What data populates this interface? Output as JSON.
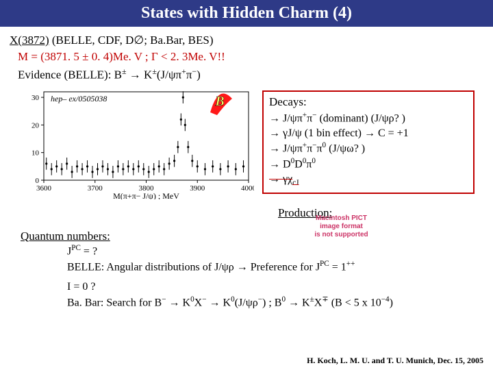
{
  "title": "States with Hidden Charm (4)",
  "line1_pre": "X(3872)",
  "line1_rest": " (BELLE, CDF, D∅; Ba.Bar, BES)",
  "line2": "M = (3871. 5 ± 0. 4)Me. V ; Γ < 2. 3Me. V!!",
  "line3": "Evidence (BELLE): B± → K±(J/ψπ+π−)",
  "chart": {
    "title_left": "hep– ex/0505038",
    "y_ticks": [
      0,
      10,
      20,
      30
    ],
    "x_ticks": [
      3600,
      3700,
      3800,
      3900,
      4000
    ],
    "x_label": "M(π+π− J/ψ) ; MeV",
    "ylim": [
      0,
      32
    ],
    "xlim": [
      3600,
      4000
    ],
    "points": [
      [
        3605,
        6
      ],
      [
        3615,
        4
      ],
      [
        3625,
        5
      ],
      [
        3635,
        4
      ],
      [
        3645,
        6
      ],
      [
        3655,
        3
      ],
      [
        3665,
        5
      ],
      [
        3675,
        4
      ],
      [
        3685,
        5
      ],
      [
        3695,
        3
      ],
      [
        3705,
        4
      ],
      [
        3715,
        5
      ],
      [
        3725,
        4
      ],
      [
        3735,
        3
      ],
      [
        3745,
        5
      ],
      [
        3755,
        4
      ],
      [
        3765,
        5
      ],
      [
        3775,
        4
      ],
      [
        3785,
        5
      ],
      [
        3795,
        4
      ],
      [
        3805,
        3
      ],
      [
        3815,
        4
      ],
      [
        3825,
        5
      ],
      [
        3835,
        4
      ],
      [
        3845,
        6
      ],
      [
        3855,
        7
      ],
      [
        3862,
        12
      ],
      [
        3868,
        22
      ],
      [
        3872,
        30
      ],
      [
        3876,
        20
      ],
      [
        3882,
        12
      ],
      [
        3890,
        7
      ],
      [
        3900,
        5
      ],
      [
        3915,
        4
      ],
      [
        3930,
        5
      ],
      [
        3945,
        4
      ],
      [
        3960,
        5
      ],
      [
        3975,
        4
      ],
      [
        3990,
        5
      ]
    ],
    "err": 2.2,
    "logo_B": "B",
    "axis_color": "#000000",
    "point_color": "#000000",
    "font_label": 12,
    "font_tick": 11
  },
  "decays": {
    "hdr": "Decays:",
    "d1": "→ J/ψπ+π− (dominant) (J/ψρ? )",
    "d2": "→ γJ/ψ (1 bin effect) → C = +1",
    "d3": "→ J/ψπ+π−π0 (J/ψω? )",
    "d4": "→ D0D0π0",
    "d5": "→ γχcJ"
  },
  "production": "Production:",
  "qn_hdr": "Quantum numbers:",
  "qn1a": "JPC = ?",
  "qn1b": "BELLE: Angular distributions of J/ψρ → Preference for JPC = 1++",
  "qn2a": "I = 0 ?",
  "qn2b": "Ba. Bar: Search for B− → K0X− → K0(J/ψρ−) ; B0 → K±X∓ (B < 5 x 10−4)",
  "footer": "H. Koch, L. M. U. and T. U.  Munich, Dec. 15, 2005",
  "pict1": "Macintosh PICT",
  "pict2": "image format",
  "pict3": "is not supported"
}
